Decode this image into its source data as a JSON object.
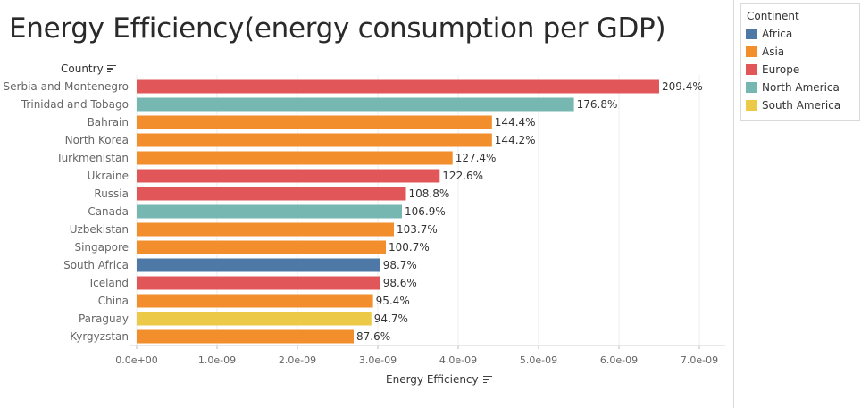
{
  "title": "Energy Efficiency(energy consumption per GDP)",
  "legend": {
    "title": "Continent",
    "items": [
      {
        "label": "Africa",
        "color": "#4e79a7"
      },
      {
        "label": "Asia",
        "color": "#f28e2b"
      },
      {
        "label": "Europe",
        "color": "#e15759"
      },
      {
        "label": "North America",
        "color": "#76b7b2"
      },
      {
        "label": "South America",
        "color": "#edc948"
      }
    ]
  },
  "chart_data": {
    "type": "bar",
    "orientation": "horizontal",
    "ylabel": "Country",
    "xlabel": "Energy Efficiency",
    "xlim": [
      0,
      7.2e-09
    ],
    "xticks": [
      0,
      1e-09,
      2e-09,
      3e-09,
      4e-09,
      5e-09,
      6e-09,
      7e-09
    ],
    "xtick_labels": [
      "0.0e+00",
      "1.0e-09",
      "2.0e-09",
      "3.0e-09",
      "4.0e-09",
      "5.0e-09",
      "6.0e-09",
      "7.0e-09"
    ],
    "grid": "vertical",
    "legend_position": "top-right",
    "categories": [
      "Serbia and Montenegro",
      "Trinidad and Tobago",
      "Bahrain",
      "North Korea",
      "Turkmenistan",
      "Ukraine",
      "Russia",
      "Canada",
      "Uzbekistan",
      "Singapore",
      "South Africa",
      "Iceland",
      "China",
      "Paraguay",
      "Kyrgyzstan"
    ],
    "values": [
      6.5e-09,
      5.44e-09,
      4.42e-09,
      4.42e-09,
      3.93e-09,
      3.77e-09,
      3.35e-09,
      3.3e-09,
      3.2e-09,
      3.1e-09,
      3.03e-09,
      3.03e-09,
      2.94e-09,
      2.92e-09,
      2.7e-09
    ],
    "labels": [
      "209.4%",
      "176.8%",
      "144.4%",
      "144.2%",
      "127.4%",
      "122.6%",
      "108.8%",
      "106.9%",
      "103.7%",
      "100.7%",
      "98.7%",
      "98.6%",
      "95.4%",
      "94.7%",
      "87.6%"
    ],
    "continents": [
      "Europe",
      "North America",
      "Asia",
      "Asia",
      "Asia",
      "Europe",
      "Europe",
      "North America",
      "Asia",
      "Asia",
      "Africa",
      "Europe",
      "Asia",
      "South America",
      "Asia"
    ]
  }
}
